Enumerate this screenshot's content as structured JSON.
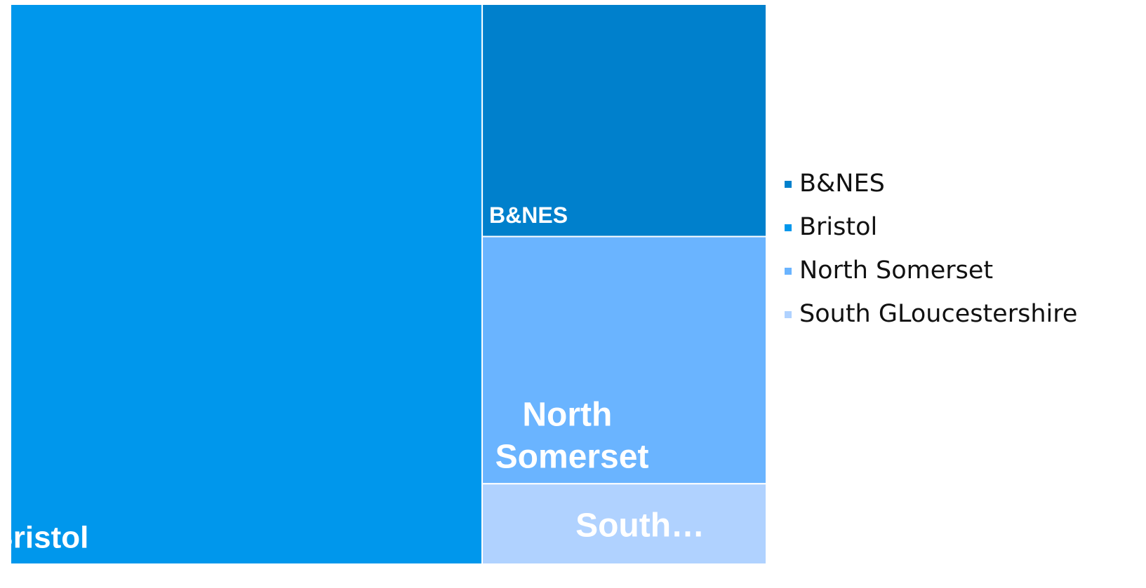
{
  "chart_data": {
    "type": "treemap",
    "categories": [
      "B&NES",
      "Bristol",
      "North Somerset",
      "South GLoucestershire"
    ],
    "labels": [
      "B&NES",
      "Bristol",
      "North Somerset",
      "South…"
    ],
    "values": [
      15.6,
      62.4,
      16.6,
      5.4
    ],
    "colors": [
      "#0080cc",
      "#0097ec",
      "#6ab4ff",
      "#b0d2ff"
    ],
    "legend": "right"
  }
}
